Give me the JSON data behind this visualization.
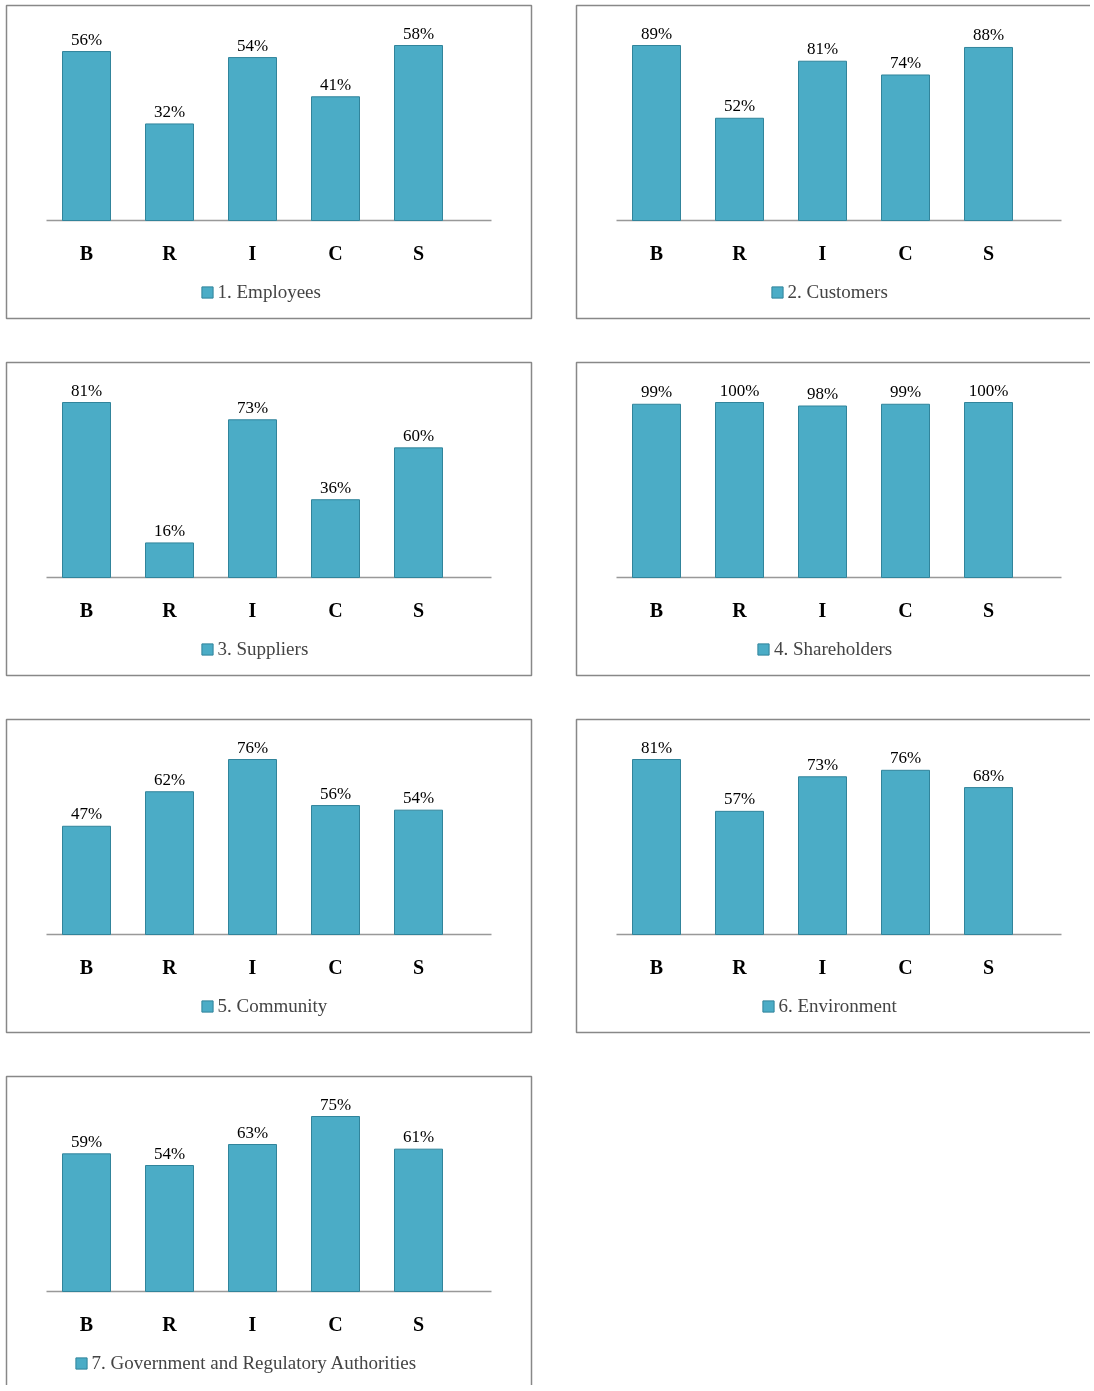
{
  "chart_data": [
    {
      "type": "bar",
      "categories": [
        "B",
        "R",
        "I",
        "C",
        "S"
      ],
      "series": [
        {
          "name": "1. Employees",
          "color": "#4bacc6",
          "values": [
            56,
            32,
            54,
            41,
            58
          ],
          "value_labels": [
            "56%",
            "32%",
            "54%",
            "41%",
            "58%"
          ]
        }
      ],
      "legend": "bottom",
      "grid": false
    },
    {
      "type": "bar",
      "categories": [
        "B",
        "R",
        "I",
        "C",
        "S"
      ],
      "series": [
        {
          "name": "2. Customers",
          "color": "#4bacc6",
          "values": [
            89,
            52,
            81,
            74,
            88
          ],
          "value_labels": [
            "89%",
            "52%",
            "81%",
            "74%",
            "88%"
          ]
        }
      ],
      "legend": "bottom",
      "grid": false
    },
    {
      "type": "bar",
      "categories": [
        "B",
        "R",
        "I",
        "C",
        "S"
      ],
      "series": [
        {
          "name": "3. Suppliers",
          "color": "#4bacc6",
          "values": [
            81,
            16,
            73,
            36,
            60
          ],
          "value_labels": [
            "81%",
            "16%",
            "73%",
            "36%",
            "60%"
          ]
        }
      ],
      "legend": "bottom",
      "grid": false
    },
    {
      "type": "bar",
      "categories": [
        "B",
        "R",
        "I",
        "C",
        "S"
      ],
      "series": [
        {
          "name": "4. Shareholders",
          "color": "#4bacc6",
          "values": [
            99,
            100,
            98,
            99,
            100
          ],
          "value_labels": [
            "99%",
            "100%",
            "98%",
            "99%",
            "100%"
          ]
        }
      ],
      "legend": "bottom",
      "grid": false
    },
    {
      "type": "bar",
      "categories": [
        "B",
        "R",
        "I",
        "C",
        "S"
      ],
      "series": [
        {
          "name": "5. Community",
          "color": "#4bacc6",
          "values": [
            47,
            62,
            76,
            56,
            54
          ],
          "value_labels": [
            "47%",
            "62%",
            "76%",
            "56%",
            "54%"
          ]
        }
      ],
      "legend": "bottom",
      "grid": false
    },
    {
      "type": "bar",
      "categories": [
        "B",
        "R",
        "I",
        "C",
        "S"
      ],
      "series": [
        {
          "name": "6. Environment",
          "color": "#4bacc6",
          "values": [
            81,
            57,
            73,
            76,
            68
          ],
          "value_labels": [
            "81%",
            "57%",
            "73%",
            "76%",
            "68%"
          ]
        }
      ],
      "legend": "bottom",
      "grid": false
    },
    {
      "type": "bar",
      "categories": [
        "B",
        "R",
        "I",
        "C",
        "S"
      ],
      "series": [
        {
          "name": "7. Government and Regulatory Authorities",
          "color": "#4bacc6",
          "values": [
            59,
            54,
            63,
            75,
            61
          ],
          "value_labels": [
            "59%",
            "54%",
            "63%",
            "75%",
            "61%"
          ]
        }
      ],
      "legend": "bottom",
      "grid": false
    }
  ]
}
